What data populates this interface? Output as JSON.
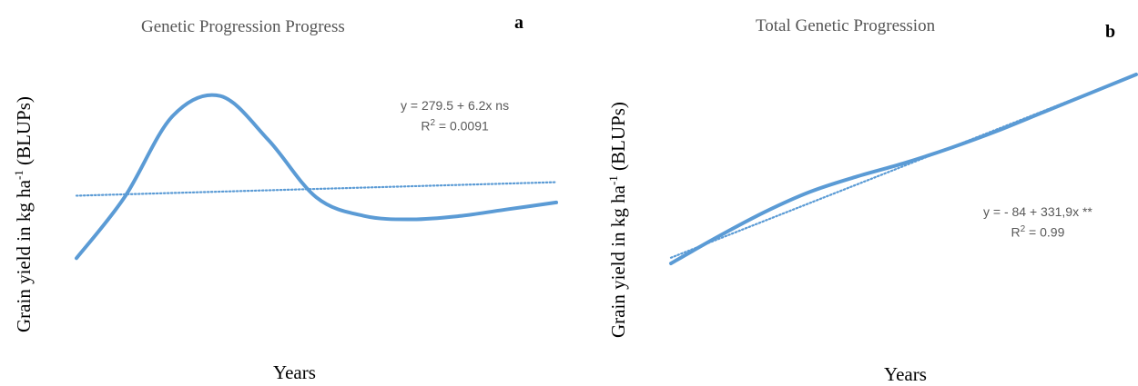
{
  "chart_data": [
    {
      "panel": "a",
      "type": "line",
      "title": "Genetic Progression Progress",
      "xlabel": "Years",
      "ylabel_prefix": "Grain yield in kg ha",
      "ylabel_sup": "-1",
      "ylabel_suffix": " (BLUPs)",
      "series": [
        {
          "style": "solid",
          "x": [
            0,
            0.1,
            0.2,
            0.3,
            0.4,
            0.5,
            0.6,
            0.7,
            0.8,
            0.9,
            1.0
          ],
          "y": [
            0.02,
            0.38,
            0.86,
            0.98,
            0.72,
            0.38,
            0.27,
            0.25,
            0.27,
            0.31,
            0.35
          ]
        },
        {
          "style": "dotted",
          "x": [
            0,
            1.0
          ],
          "y": [
            0.39,
            0.47
          ]
        }
      ],
      "annotation": {
        "equation": "y = 279.5 + 6.2x  ns",
        "r2_prefix": "R",
        "r2_sup": "2",
        "r2_value": " = 0.0091"
      }
    },
    {
      "panel": "b",
      "type": "line",
      "title": "Total Genetic Progression",
      "xlabel": "Years",
      "ylabel_prefix": "Grain yield in kg ha",
      "ylabel_sup": "-1",
      "ylabel_suffix": " (BLUPs)",
      "series": [
        {
          "style": "solid",
          "x": [
            0,
            0.1,
            0.2,
            0.3,
            0.4,
            0.5,
            0.6,
            0.7,
            0.8,
            0.9,
            1.0
          ],
          "y": [
            0.0,
            0.14,
            0.27,
            0.38,
            0.46,
            0.53,
            0.61,
            0.7,
            0.8,
            0.9,
            1.0
          ]
        },
        {
          "style": "dotted",
          "x": [
            0,
            1.0
          ],
          "y": [
            0.03,
            1.0
          ]
        }
      ],
      "annotation": {
        "equation": "y = - 84 + 331,9x  **",
        "r2_prefix": "R",
        "r2_sup": "2",
        "r2_value": " = 0.99"
      }
    }
  ],
  "line_color": "#5b9bd5"
}
